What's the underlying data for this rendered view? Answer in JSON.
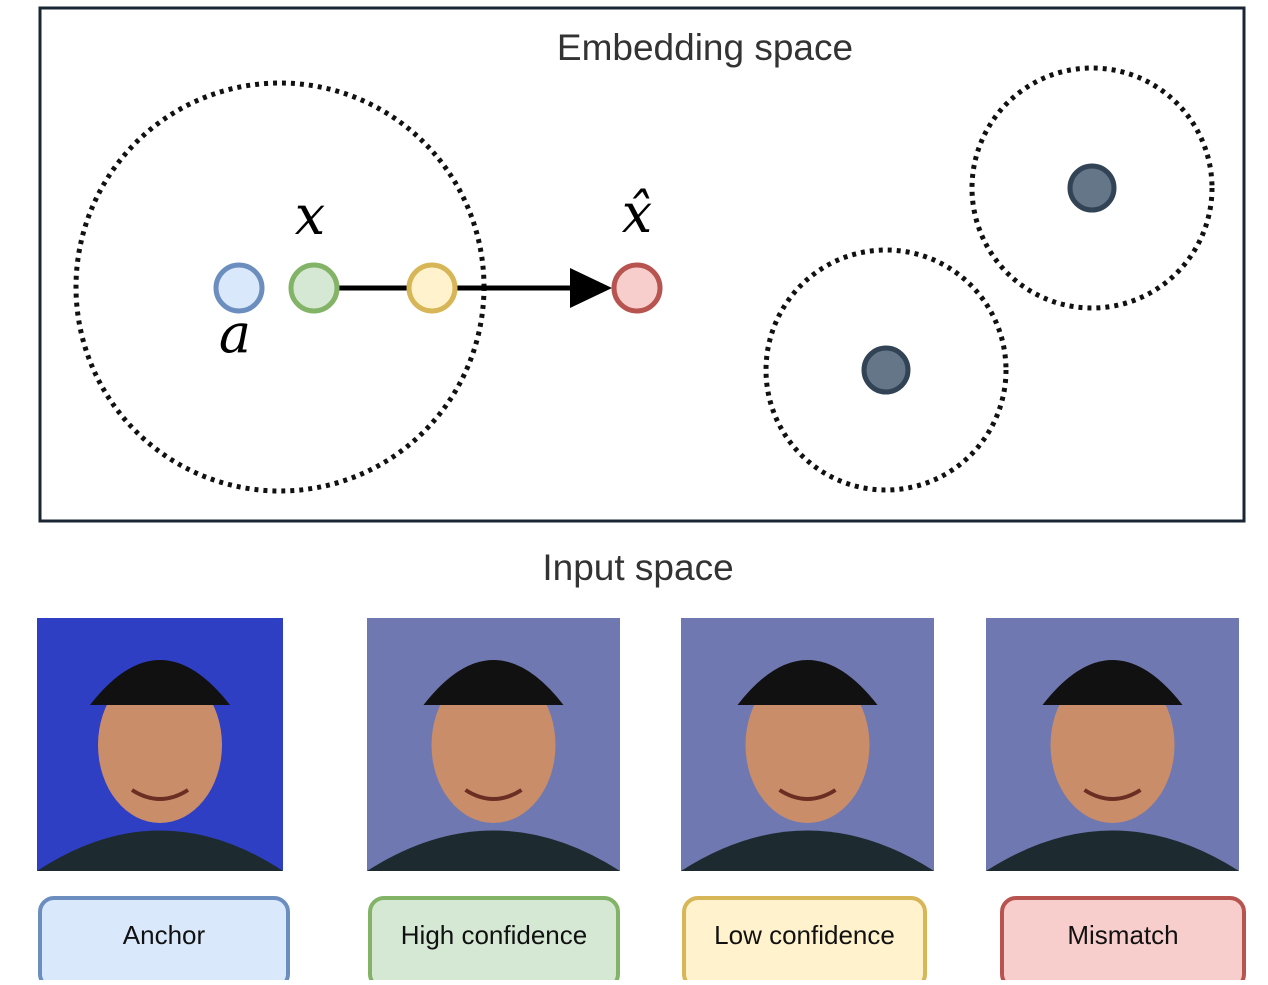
{
  "embedding": {
    "title": "Embedding space",
    "labels": {
      "anchor": "a",
      "input": "x",
      "perturbed": "x̂"
    }
  },
  "input": {
    "title": "Input space",
    "items": [
      "Anchor",
      "High confidence",
      "Low confidence",
      "Mismatch"
    ]
  }
}
